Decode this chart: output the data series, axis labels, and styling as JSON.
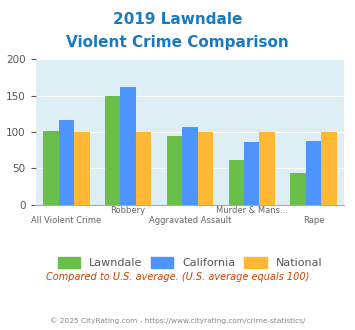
{
  "title_line1": "2019 Lawndale",
  "title_line2": "Violent Crime Comparison",
  "categories": [
    "All Violent Crime",
    "Robbery",
    "Aggravated Assault",
    "Murder & Mans...",
    "Rape"
  ],
  "lawndale": [
    101,
    150,
    95,
    62,
    44
  ],
  "california": [
    117,
    162,
    107,
    86,
    87
  ],
  "national": [
    100,
    100,
    100,
    100,
    100
  ],
  "color_lawndale": "#6abf4b",
  "color_california": "#4d94ff",
  "color_national": "#ffb833",
  "ylim": [
    0,
    200
  ],
  "yticks": [
    0,
    50,
    100,
    150,
    200
  ],
  "bg_color": "#ddeef5",
  "subtitle_note": "Compared to U.S. average. (U.S. average equals 100)",
  "footer": "© 2025 CityRating.com - https://www.cityrating.com/crime-statistics/",
  "legend_labels": [
    "Lawndale",
    "California",
    "National"
  ],
  "title_color": "#1a7abf",
  "note_color": "#cc4400",
  "footer_color": "#888888"
}
